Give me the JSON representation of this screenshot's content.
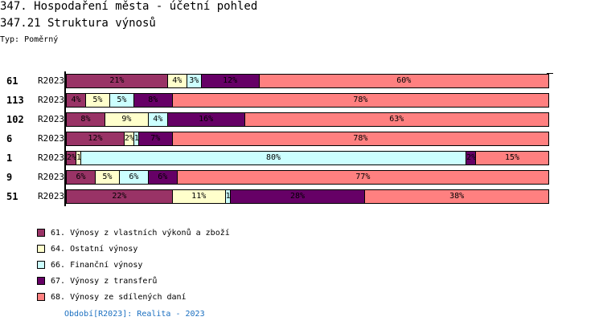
{
  "title": "347. Hospodaření města - účetní pohled",
  "subtitle": "347.21 Struktura výnosů",
  "type_label": "Typ: Poměrný",
  "footer": "Období[R2023]: Realita - 2023",
  "chart_data": {
    "type": "bar",
    "stacked": true,
    "orientation": "horizontal",
    "series": [
      {
        "name": "61. Výnosy z vlastních výkonů a zboží",
        "color": "#993366",
        "text": "#000000"
      },
      {
        "name": "64. Ostatní výnosy",
        "color": "#ffffcc",
        "text": "#000000"
      },
      {
        "name": "66. Finanční výnosy",
        "color": "#ccffff",
        "text": "#000000"
      },
      {
        "name": "67. Výnosy z transferů",
        "color": "#660066",
        "text": "#000000"
      },
      {
        "name": "68. Výnosy ze sdílených daní",
        "color": "#ff8080",
        "text": "#000000"
      }
    ],
    "rows": [
      {
        "id": "61",
        "period": "R2023",
        "values": [
          21,
          4,
          3,
          12,
          60
        ]
      },
      {
        "id": "113",
        "period": "R2023",
        "values": [
          4,
          5,
          5,
          8,
          78
        ]
      },
      {
        "id": "102",
        "period": "R2023",
        "values": [
          8,
          9,
          4,
          16,
          63
        ]
      },
      {
        "id": "6",
        "period": "R2023",
        "values": [
          12,
          2,
          1,
          7,
          78
        ]
      },
      {
        "id": "1",
        "period": "R2023",
        "values": [
          2,
          1,
          80,
          2,
          15
        ]
      },
      {
        "id": "9",
        "period": "R2023",
        "values": [
          6,
          5,
          6,
          6,
          77
        ]
      },
      {
        "id": "51",
        "period": "R2023",
        "values": [
          22,
          11,
          1,
          28,
          38
        ]
      }
    ],
    "xlim": [
      0,
      100
    ],
    "legend": "bottom-left"
  }
}
